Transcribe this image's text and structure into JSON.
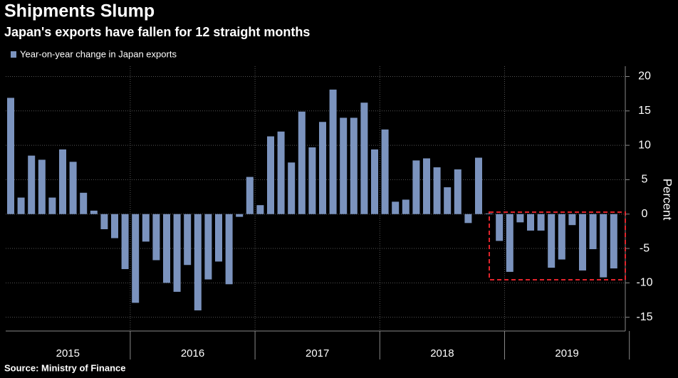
{
  "chart_data": {
    "type": "bar",
    "title": "Shipments Slump",
    "subtitle": "Japan's exports have fallen for 12 straight months",
    "series": [
      {
        "name": "Year-on-year change in Japan exports",
        "color": "#7b93be",
        "values": [
          16.9,
          2.4,
          8.5,
          7.9,
          2.4,
          9.4,
          7.6,
          3.1,
          0.5,
          -2.2,
          -3.5,
          -8.0,
          -12.9,
          -4.0,
          -6.7,
          -10.0,
          -11.3,
          -7.4,
          -14.0,
          -9.5,
          -6.9,
          -10.2,
          -0.4,
          5.4,
          1.3,
          11.3,
          12.0,
          7.5,
          14.9,
          9.7,
          13.4,
          18.1,
          14.0,
          14.0,
          16.2,
          9.4,
          12.3,
          1.8,
          2.1,
          7.8,
          8.1,
          6.8,
          3.9,
          6.5,
          -1.3,
          8.2,
          0.1,
          -3.9,
          -8.4,
          -1.2,
          -2.4,
          -2.4,
          -7.8,
          -6.6,
          -1.6,
          -8.2,
          -5.1,
          -9.2,
          -7.9
        ]
      }
    ],
    "years": [
      "2015",
      "2016",
      "2017",
      "2018",
      "2019"
    ],
    "ylabel": "Percent",
    "ylim": [
      -17,
      21.5
    ],
    "yticks": [
      -15,
      -10,
      -5,
      0,
      5,
      10,
      15,
      20
    ],
    "grid": true,
    "source": "Source: Ministry of Finance"
  }
}
